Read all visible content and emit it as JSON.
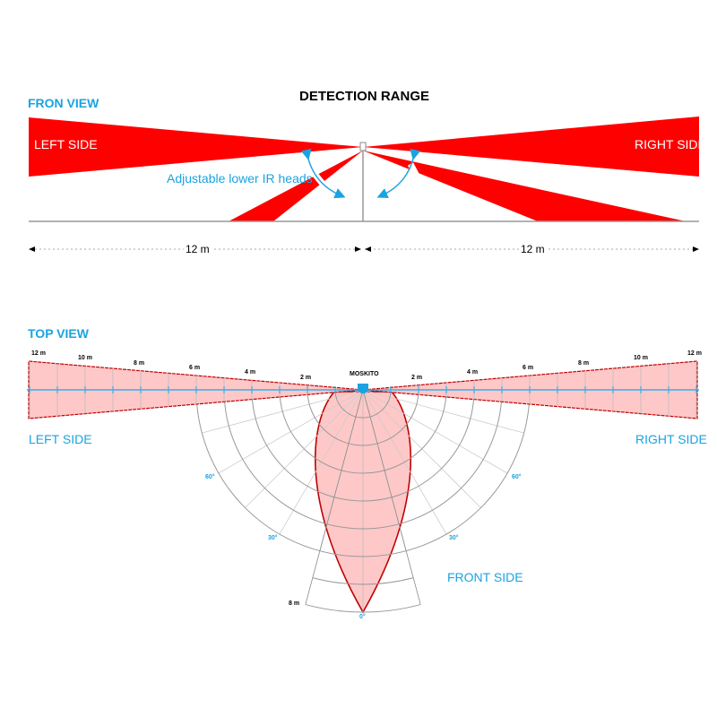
{
  "title": "DETECTION RANGE",
  "front_view": {
    "heading": "FRON VIEW",
    "left_label": "LEFT SIDE",
    "right_label": "RIGHT SIDE",
    "adjust_note": "Adjustable lower IR heads",
    "left_distance": "12 m",
    "right_distance": "12 m"
  },
  "top_view": {
    "heading": "TOP VIEW",
    "device": "MOSKITO",
    "left_label": "LEFT SIDE",
    "right_label": "RIGHT SIDE",
    "front_label": "FRONT SIDE",
    "distance_labels": [
      "2 m",
      "4 m",
      "6 m",
      "8 m",
      "10 m",
      "12 m"
    ],
    "front_distance": "8 m",
    "angles": {
      "a60": "60°",
      "a30": "30°",
      "a0": "0°"
    }
  },
  "colors": {
    "beam": "#ff0000",
    "zone": "#ffc8c8",
    "outline": "#c00000",
    "accent": "#1aa3e0"
  }
}
